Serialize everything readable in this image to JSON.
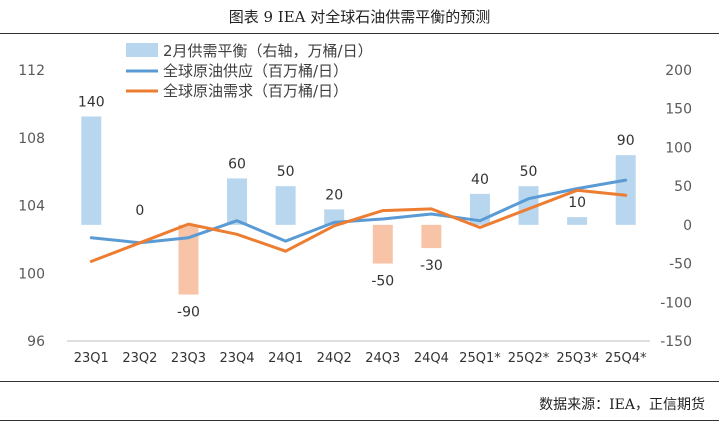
{
  "figure": {
    "title": "图表 9   IEA 对全球石油供需平衡的预测",
    "source": "数据来源：IEA，正信期货"
  },
  "colors": {
    "bar_positive": "#b9d6ef",
    "bar_negative": "#f8c4a8",
    "supply_line": "#5b9bd5",
    "demand_line": "#ed7d31",
    "axis_text": "#595959"
  },
  "chart_data": {
    "type": "bar",
    "categories": [
      "23Q1",
      "23Q2",
      "23Q3",
      "23Q4",
      "24Q1",
      "24Q2",
      "24Q3",
      "24Q4",
      "25Q1*",
      "25Q2*",
      "25Q3*",
      "25Q4*"
    ],
    "series": [
      {
        "name": "2月供需平衡（右轴，万桶/日）",
        "type": "bar",
        "axis": "right",
        "values": [
          140,
          0,
          -90,
          60,
          50,
          20,
          -50,
          -30,
          40,
          50,
          10,
          90
        ],
        "labels": [
          "140",
          "0",
          "-90",
          "60",
          "50",
          "20",
          "-50",
          "-30",
          "40",
          "50",
          "10",
          "90"
        ]
      },
      {
        "name": "全球原油供应（百万桶/日）",
        "type": "line",
        "axis": "left",
        "values": [
          102.1,
          101.8,
          102.1,
          103.1,
          101.9,
          103.0,
          103.2,
          103.5,
          103.1,
          104.4,
          105.0,
          105.5
        ]
      },
      {
        "name": "全球原油需求（百万桶/日）",
        "type": "line",
        "axis": "left",
        "values": [
          100.7,
          101.8,
          102.9,
          102.3,
          101.3,
          102.8,
          103.7,
          103.8,
          102.7,
          103.8,
          104.9,
          104.6
        ]
      }
    ],
    "left_axis": {
      "ylim": [
        96,
        112
      ],
      "ticks": [
        96,
        100,
        104,
        108,
        112
      ]
    },
    "right_axis": {
      "ylim": [
        -150,
        200
      ],
      "ticks": [
        -150,
        -100,
        -50,
        0,
        50,
        100,
        150,
        200
      ]
    },
    "legend_position": "top-left",
    "grid": false
  }
}
